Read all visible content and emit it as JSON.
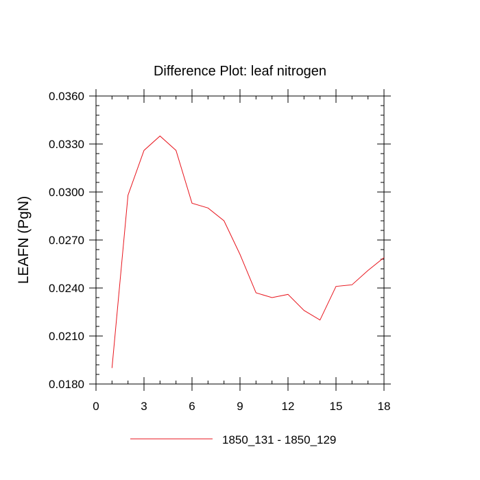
{
  "chart_data": {
    "type": "line",
    "title": "Difference Plot: leaf nitrogen",
    "xlabel": "",
    "ylabel": "LEAFN  (PgN)",
    "xlim": [
      0,
      18
    ],
    "ylim": [
      0.018,
      0.036
    ],
    "x_ticks": [
      0,
      3,
      6,
      9,
      12,
      15,
      18
    ],
    "x_tick_labels": [
      "0",
      "3",
      "6",
      "9",
      "12",
      "15",
      "18"
    ],
    "y_ticks": [
      0.018,
      0.021,
      0.024,
      0.027,
      0.03,
      0.033,
      0.036
    ],
    "y_tick_labels": [
      "0.0180",
      "0.0210",
      "0.0240",
      "0.0270",
      "0.0300",
      "0.0330",
      "0.0360"
    ],
    "grid": false,
    "legend_position": "bottom-center",
    "series": [
      {
        "name": "1850_131 - 1850_129",
        "color": "#e8141c",
        "x": [
          1,
          2,
          3,
          4,
          5,
          6,
          7,
          8,
          9,
          10,
          11,
          12,
          13,
          14,
          15,
          16,
          17,
          18
        ],
        "values": [
          0.019,
          0.0298,
          0.0326,
          0.0335,
          0.0326,
          0.0293,
          0.029,
          0.0282,
          0.0261,
          0.0237,
          0.0234,
          0.0236,
          0.0226,
          0.022,
          0.0241,
          0.0242,
          0.0251,
          0.0259
        ]
      }
    ]
  }
}
